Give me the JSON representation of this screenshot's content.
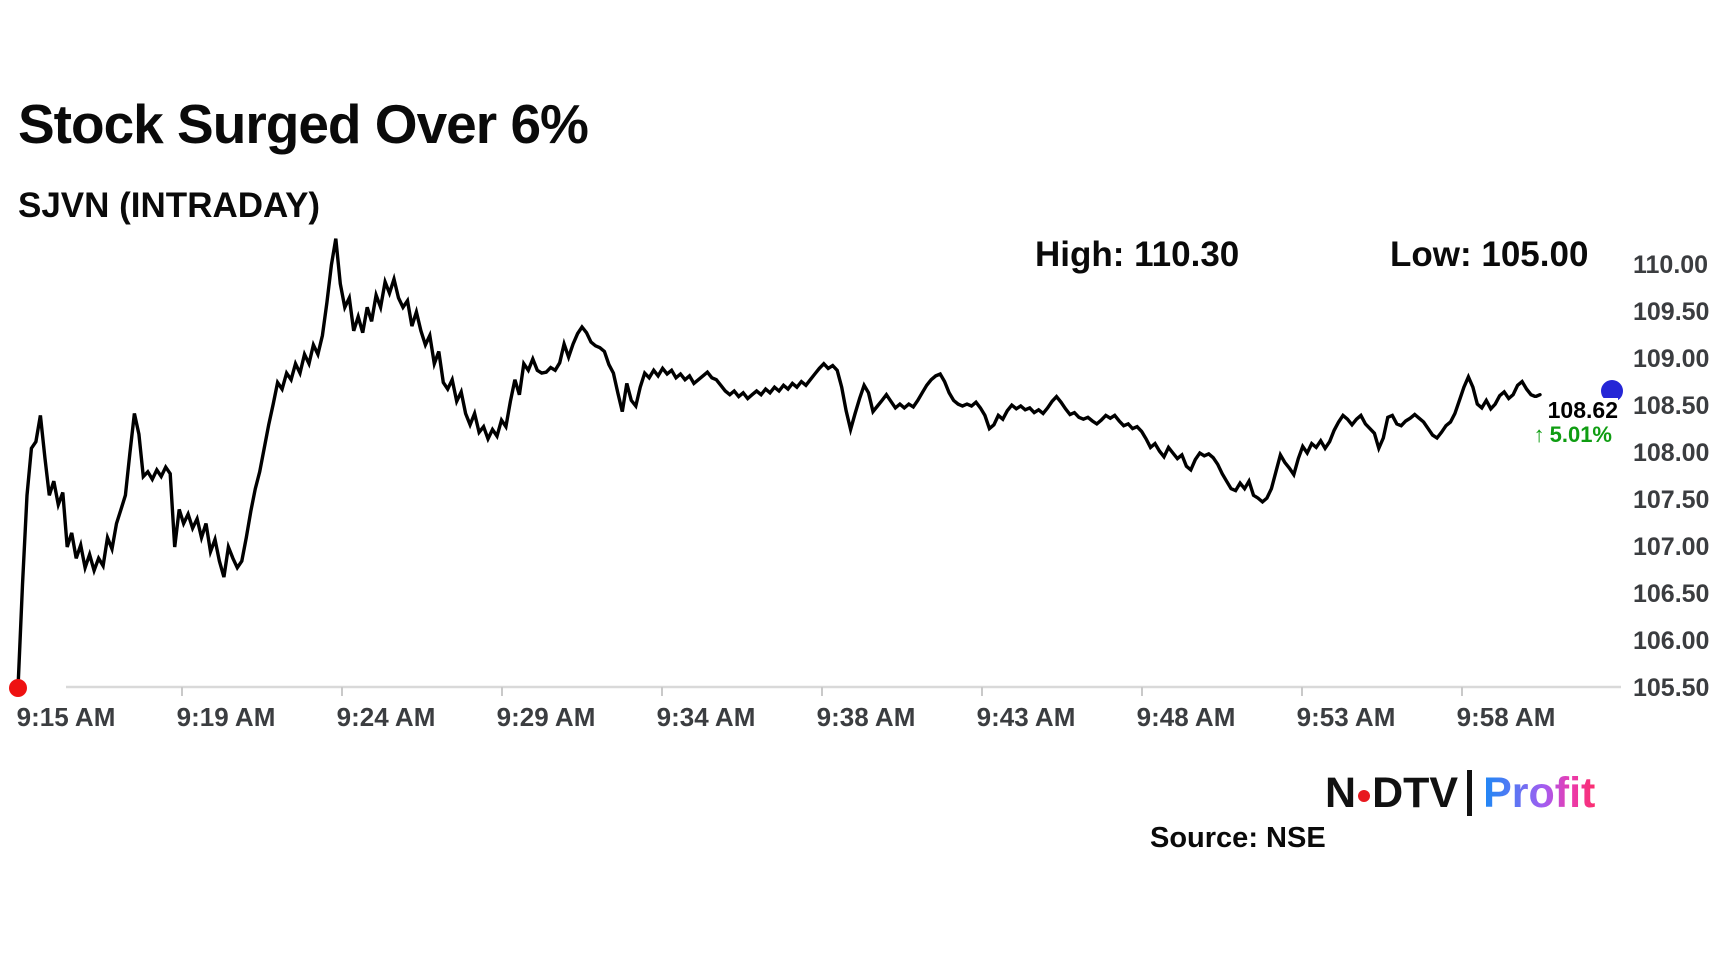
{
  "header": {
    "title": "Stock Surged Over 6%",
    "subtitle": "SJVN (INTRADAY)"
  },
  "stats": {
    "high_label": "High: 110.30",
    "low_label": "Low: 105.00"
  },
  "price_tag": {
    "last_price": "108.62",
    "change_arrow": "↑",
    "change_text": "5.01%"
  },
  "footer": {
    "source": "Source: NSE",
    "logo_ndtv_left": "N",
    "logo_ndtv_right": "DTV",
    "logo_profit": "Profit"
  },
  "colors": {
    "line": "#000000",
    "start_dot": "#ee1111",
    "end_dot": "#2526d6",
    "change_green": "#0f9d12",
    "axis_text": "#3b3d40",
    "axis_line": "#d9d9d9",
    "tick": "#c9c9c9",
    "logo_dot_red": "#e8191f"
  },
  "chart_data": {
    "type": "line",
    "title": "SJVN (INTRADAY)",
    "series_name": "SJVN intraday price",
    "xlabel": "",
    "ylabel": "",
    "grid": "off",
    "legend": "none",
    "ylim": [
      105.5,
      110.0
    ],
    "high": 110.3,
    "low": 105.0,
    "last": 108.62,
    "change_pct": 5.01,
    "x_labels": [
      "9:15 AM",
      "9:19 AM",
      "9:24 AM",
      "9:29 AM",
      "9:34 AM",
      "9:38 AM",
      "9:43 AM",
      "9:48 AM",
      "9:53 AM",
      "9:58 AM"
    ],
    "y_ticks": [
      "110.00",
      "109.50",
      "109.00",
      "108.50",
      "108.00",
      "107.50",
      "107.00",
      "106.50",
      "106.00",
      "105.50"
    ],
    "prices": [
      105.5,
      106.6,
      107.55,
      108.05,
      108.12,
      108.4,
      107.95,
      107.55,
      107.7,
      107.45,
      107.58,
      107.0,
      107.15,
      106.88,
      107.02,
      106.78,
      106.92,
      106.75,
      106.88,
      106.8,
      107.1,
      106.98,
      107.25,
      107.4,
      107.55,
      108.0,
      108.42,
      108.2,
      107.75,
      107.8,
      107.72,
      107.82,
      107.75,
      107.85,
      107.78,
      107.0,
      107.4,
      107.25,
      107.35,
      107.2,
      107.3,
      107.1,
      107.25,
      106.95,
      107.08,
      106.85,
      106.68,
      107.0,
      106.88,
      106.78,
      106.85,
      107.1,
      107.38,
      107.62,
      107.8,
      108.05,
      108.3,
      108.52,
      108.75,
      108.68,
      108.85,
      108.78,
      108.95,
      108.85,
      109.05,
      108.95,
      109.15,
      109.05,
      109.25,
      109.6,
      110.0,
      110.28,
      109.8,
      109.55,
      109.65,
      109.3,
      109.45,
      109.28,
      109.55,
      109.4,
      109.68,
      109.55,
      109.82,
      109.7,
      109.85,
      109.65,
      109.55,
      109.62,
      109.35,
      109.5,
      109.3,
      109.15,
      109.25,
      108.95,
      109.08,
      108.75,
      108.68,
      108.78,
      108.55,
      108.65,
      108.42,
      108.3,
      108.42,
      108.22,
      108.28,
      108.15,
      108.25,
      108.18,
      108.35,
      108.28,
      108.55,
      108.78,
      108.62,
      108.95,
      108.88,
      109.0,
      108.88,
      108.85,
      108.86,
      108.91,
      108.88,
      108.96,
      109.16,
      109.02,
      109.16,
      109.27,
      109.34,
      109.28,
      109.18,
      109.14,
      109.12,
      109.08,
      108.94,
      108.85,
      108.64,
      108.44,
      108.74,
      108.56,
      108.5,
      108.7,
      108.85,
      108.8,
      108.88,
      108.82,
      108.9,
      108.84,
      108.88,
      108.8,
      108.84,
      108.78,
      108.82,
      108.74,
      108.78,
      108.82,
      108.86,
      108.8,
      108.78,
      108.72,
      108.66,
      108.62,
      108.66,
      108.6,
      108.64,
      108.58,
      108.62,
      108.66,
      108.62,
      108.68,
      108.64,
      108.7,
      108.66,
      108.72,
      108.68,
      108.74,
      108.7,
      108.76,
      108.72,
      108.78,
      108.84,
      108.9,
      108.95,
      108.9,
      108.93,
      108.88,
      108.7,
      108.45,
      108.25,
      108.42,
      108.58,
      108.72,
      108.64,
      108.44,
      108.5,
      108.56,
      108.62,
      108.55,
      108.48,
      108.52,
      108.48,
      108.52,
      108.49,
      108.56,
      108.64,
      108.72,
      108.78,
      108.82,
      108.84,
      108.76,
      108.64,
      108.56,
      108.52,
      108.5,
      108.52,
      108.5,
      108.54,
      108.48,
      108.4,
      108.26,
      108.3,
      108.4,
      108.36,
      108.45,
      108.51,
      108.47,
      108.5,
      108.46,
      108.48,
      108.43,
      108.46,
      108.42,
      108.48,
      108.55,
      108.6,
      108.54,
      108.47,
      108.41,
      108.43,
      108.38,
      108.36,
      108.38,
      108.34,
      108.31,
      108.35,
      108.4,
      108.37,
      108.4,
      108.34,
      108.29,
      108.31,
      108.26,
      108.28,
      108.23,
      108.15,
      108.06,
      108.1,
      108.02,
      107.96,
      108.06,
      108.0,
      107.94,
      107.98,
      107.86,
      107.82,
      107.93,
      108.0,
      107.97,
      107.99,
      107.95,
      107.88,
      107.78,
      107.7,
      107.62,
      107.6,
      107.68,
      107.62,
      107.7,
      107.55,
      107.52,
      107.48,
      107.52,
      107.62,
      107.8,
      107.98,
      107.9,
      107.84,
      107.77,
      107.94,
      108.07,
      108.0,
      108.1,
      108.06,
      108.13,
      108.05,
      108.12,
      108.24,
      108.33,
      108.4,
      108.36,
      108.3,
      108.36,
      108.4,
      108.31,
      108.26,
      108.21,
      108.05,
      108.16,
      108.38,
      108.4,
      108.31,
      108.29,
      108.34,
      108.37,
      108.41,
      108.37,
      108.33,
      108.26,
      108.19,
      108.16,
      108.22,
      108.29,
      108.33,
      108.42,
      108.56,
      108.7,
      108.81,
      108.7,
      108.52,
      108.48,
      108.56,
      108.47,
      108.52,
      108.61,
      108.65,
      108.58,
      108.62,
      108.72,
      108.76,
      108.68,
      108.62,
      108.6,
      108.62
    ]
  }
}
